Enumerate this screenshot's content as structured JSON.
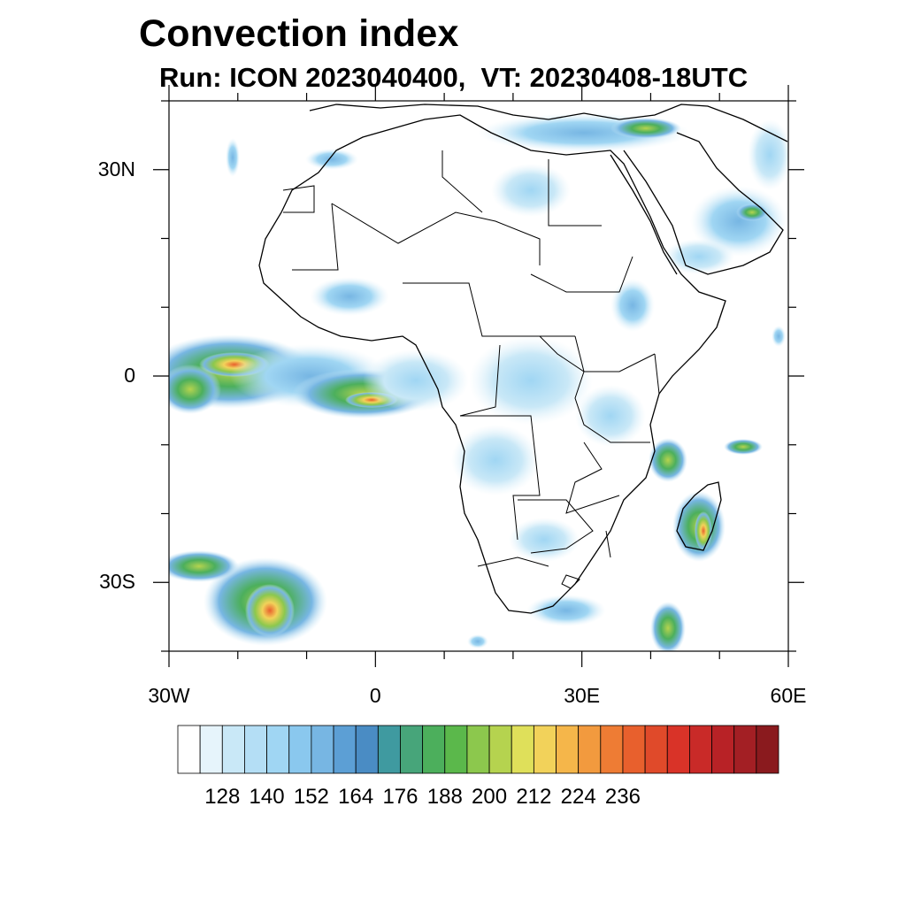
{
  "title": "Convection index",
  "subtitle": "Run: ICON 2023040400,  VT: 20230408-18UTC",
  "map": {
    "lon_range": [
      -30,
      60
    ],
    "lat_range": [
      -40,
      40
    ],
    "x_ticks": [
      {
        "lon": -30,
        "label": "30W"
      },
      {
        "lon": 0,
        "label": "0"
      },
      {
        "lon": 30,
        "label": "30E"
      },
      {
        "lon": 60,
        "label": "60E"
      }
    ],
    "y_ticks": [
      {
        "lat": 30,
        "label": "30N"
      },
      {
        "lat": 0,
        "label": "0"
      },
      {
        "lat": -30,
        "label": "30S"
      }
    ],
    "minor_lon_step": 10,
    "minor_lat_step": 10
  },
  "colorbar": {
    "labels": [
      "128",
      "140",
      "152",
      "164",
      "176",
      "188",
      "200",
      "212",
      "224",
      "236"
    ],
    "colors": [
      "#ffffff",
      "#e6f4fb",
      "#c9e8f7",
      "#b4def5",
      "#a0d6f3",
      "#8ac8ee",
      "#77b6e3",
      "#5c9fd5",
      "#4a8cc4",
      "#3f9aa0",
      "#47a57a",
      "#4caf5c",
      "#5bb84b",
      "#8cc84d",
      "#b5d34f",
      "#dfe05a",
      "#f2d25a",
      "#f5b64a",
      "#f29a3e",
      "#ee7c34",
      "#e8602d",
      "#e04a2a",
      "#d93328",
      "#c92a28",
      "#b82226",
      "#a31f24",
      "#8a1a1e"
    ]
  }
}
